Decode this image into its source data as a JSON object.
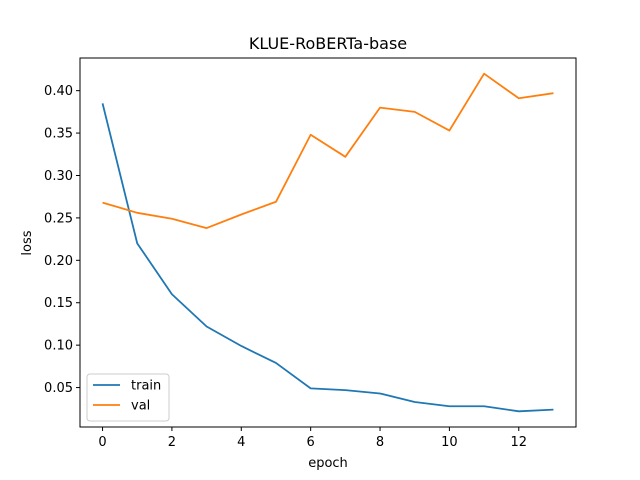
{
  "chart_data": {
    "type": "line",
    "title": "KLUE-RoBERTa-base",
    "xlabel": "epoch",
    "ylabel": "loss",
    "x": [
      0,
      1,
      2,
      3,
      4,
      5,
      6,
      7,
      8,
      9,
      10,
      11,
      12,
      13
    ],
    "xlim": [
      -0.65,
      13.65
    ],
    "ylim": [
      0.0035,
      0.4385
    ],
    "xticks": [
      0,
      2,
      4,
      6,
      8,
      10,
      12
    ],
    "xtick_labels": [
      "0",
      "2",
      "4",
      "6",
      "8",
      "10",
      "12"
    ],
    "yticks": [
      0.05,
      0.1,
      0.15,
      0.2,
      0.25,
      0.3,
      0.35,
      0.4
    ],
    "ytick_labels": [
      "0.05",
      "0.10",
      "0.15",
      "0.20",
      "0.25",
      "0.30",
      "0.35",
      "0.40"
    ],
    "grid": false,
    "legend_position": "lower-left",
    "series": [
      {
        "name": "train",
        "color": "#1f77b4",
        "values": [
          0.385,
          0.22,
          0.16,
          0.122,
          0.099,
          0.079,
          0.049,
          0.047,
          0.043,
          0.033,
          0.028,
          0.028,
          0.022,
          0.024
        ]
      },
      {
        "name": "val",
        "color": "#ff7f0e",
        "values": [
          0.268,
          0.256,
          0.249,
          0.238,
          0.254,
          0.269,
          0.348,
          0.322,
          0.38,
          0.375,
          0.353,
          0.42,
          0.391,
          0.397
        ]
      }
    ]
  }
}
